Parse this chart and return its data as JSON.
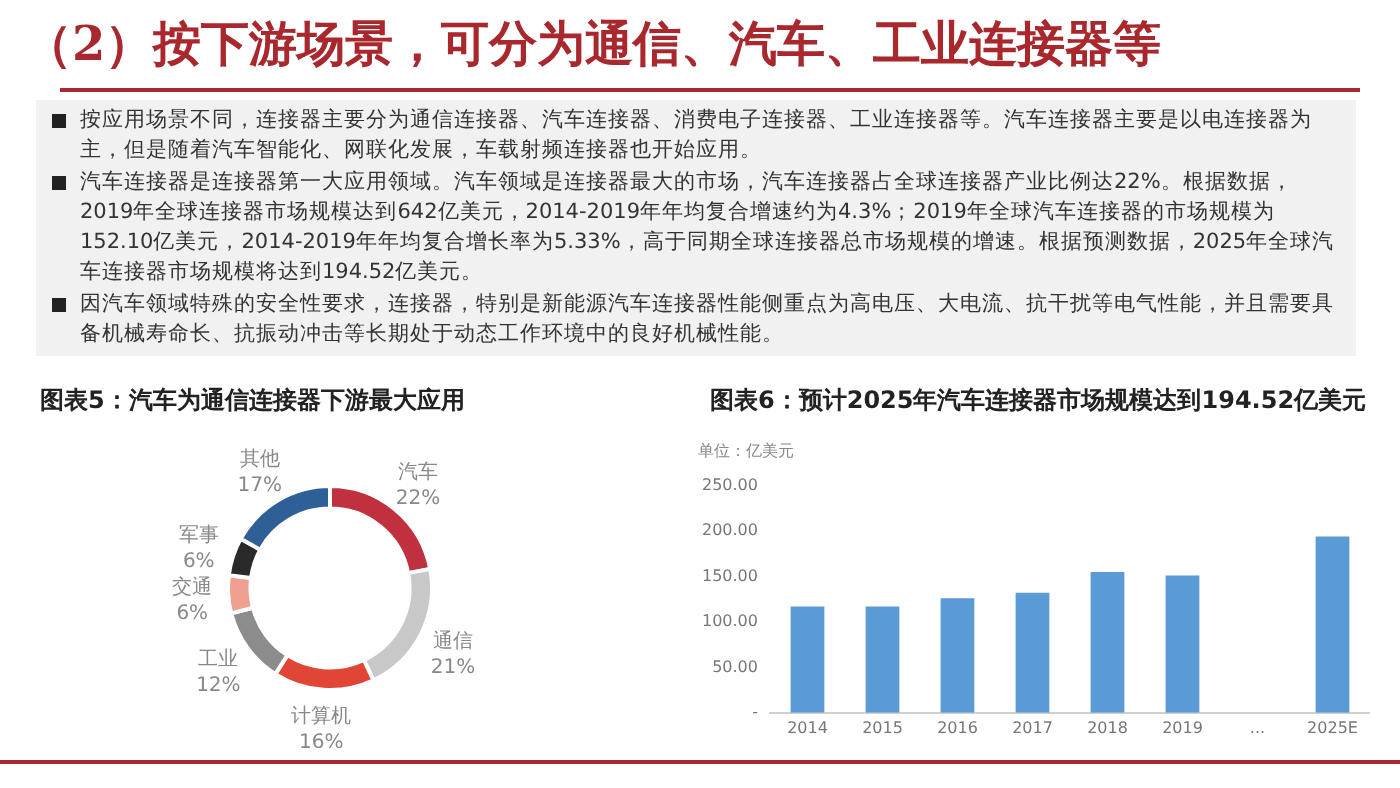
{
  "chart_data": [
    {
      "type": "other",
      "title": "（2）按下游场景，可分为通信、汽车、工业连接器等",
      "annotations": [
        "按应用场景不同，连接器主要分为通信连接器、汽车连接器、消费电子连接器、工业连接器等。汽车连接器主要是以电连接器为主，但是随着汽车智能化、网联化发展，车载射频连接器也开始应用。",
        "汽车连接器是连接器第一大应用领域。汽车领域是连接器最大的市场，汽车连接器占全球连接器产业比例达22%。根据数据，2019年全球连接器市场规模达到642亿美元，2014-2019年年均复合增速约为4.3%；2019年全球汽车连接器的市场规模为152.10亿美元，2014-2019年年均复合增长率为5.33%，高于同期全球连接器总市场规模的增速。根据预测数据，2025年全球汽车连接器市场规模将达到194.52亿美元。",
        "因汽车领域特殊的安全性要求，连接器，特别是新能源汽车连接器性能侧重点为高电压、大电流、抗干扰等电气性能，并且需要具备机械寿命长、抗振动冲击等长期处于动态工作环境中的良好机械性能。"
      ]
    },
    {
      "type": "donut",
      "title": "图表5：汽车为通信连接器下游最大应用",
      "categories": [
        "汽车",
        "通信",
        "计算机",
        "工业",
        "交通",
        "军事",
        "其他"
      ],
      "values": [
        22,
        21,
        16,
        12,
        6,
        6,
        17
      ],
      "value_labels": [
        "22%",
        "21%",
        "16%",
        "12%",
        "6%",
        "6%",
        "17%"
      ],
      "colors": [
        "#c0303f",
        "#c8c8c8",
        "#e04535",
        "#8c8c8c",
        "#f0a090",
        "#2a2a2a",
        "#2e5f96"
      ]
    },
    {
      "type": "bar",
      "title": "图表6：预计2025年汽车连接器市场规模达到194.52亿美元",
      "ylabel": "单位：亿美元",
      "categories": [
        "2014",
        "2015",
        "2016",
        "2017",
        "2018",
        "2019",
        "...",
        "2025E"
      ],
      "values": [
        117,
        117,
        126,
        132,
        155,
        151,
        null,
        194
      ],
      "color": "#5b9bd5",
      "ylim": [
        0,
        250
      ],
      "yticks": [
        {
          "value": 0,
          "label": "-"
        },
        {
          "value": 50,
          "label": "50.00"
        },
        {
          "value": 100,
          "label": "100.00"
        },
        {
          "value": 150,
          "label": "150.00"
        },
        {
          "value": 200,
          "label": "200.00"
        },
        {
          "value": 250,
          "label": "250.00"
        }
      ]
    }
  ]
}
